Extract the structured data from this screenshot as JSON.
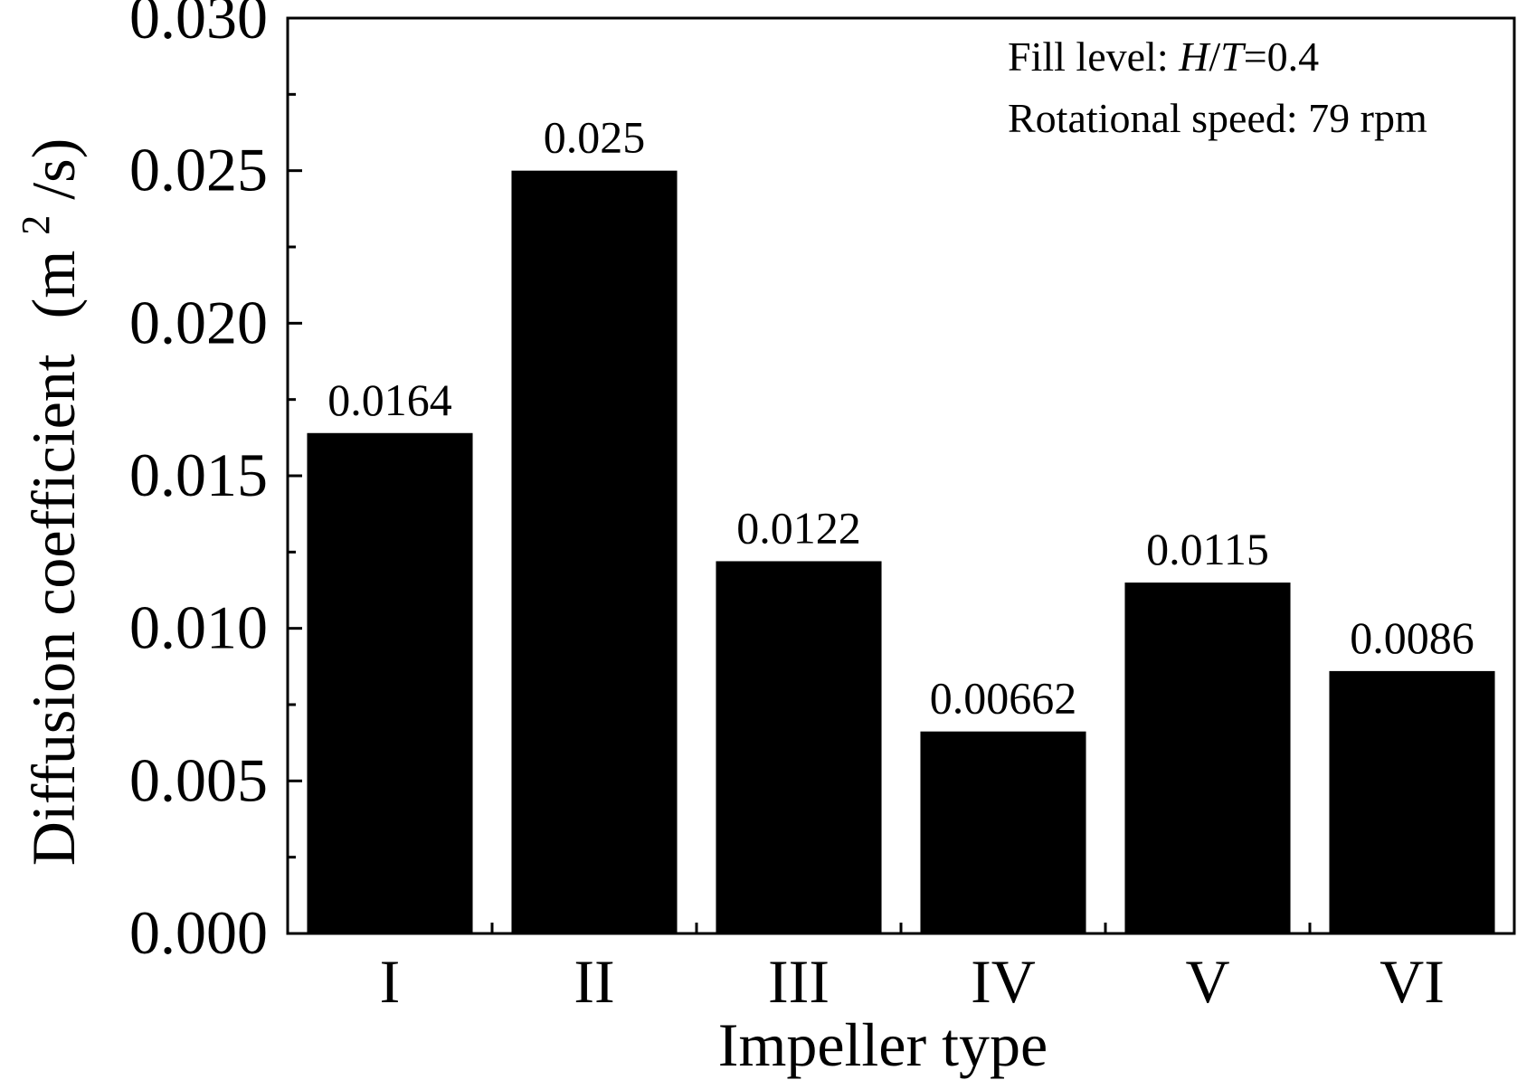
{
  "chart_data": {
    "type": "bar",
    "categories": [
      "I",
      "II",
      "III",
      "IV",
      "V",
      "VI"
    ],
    "values": [
      0.0164,
      0.025,
      0.0122,
      0.00662,
      0.0115,
      0.0086
    ],
    "data_labels": [
      "0.0164",
      "0.025",
      "0.0122",
      "0.00662",
      "0.0115",
      "0.0086"
    ],
    "xlabel": "Impeller type",
    "ylabel": {
      "main": "Diffusion coefficient",
      "unit_prefix": "(m",
      "unit_sup": "2",
      "unit_suffix": "/s)"
    },
    "ylim": [
      0,
      0.03
    ],
    "yticks": [
      0,
      0.005,
      0.01,
      0.015,
      0.02,
      0.025,
      0.03
    ],
    "ytick_labels": [
      "0.000",
      "0.005",
      "0.010",
      "0.015",
      "0.020",
      "0.025",
      "0.030"
    ],
    "bar_color": "#000000",
    "grid": false,
    "annotations": {
      "line1_prefix": "Fill level: ",
      "line1_italic_h": "H",
      "line1_slash": "/",
      "line1_italic_t": "T",
      "line1_value": "=0.4",
      "line2": "Rotational speed: 79 rpm"
    }
  }
}
